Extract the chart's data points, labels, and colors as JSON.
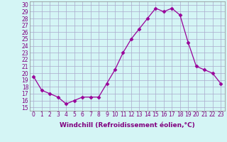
{
  "x": [
    0,
    1,
    2,
    3,
    4,
    5,
    6,
    7,
    8,
    9,
    10,
    11,
    12,
    13,
    14,
    15,
    16,
    17,
    18,
    19,
    20,
    21,
    22,
    23
  ],
  "y": [
    19.5,
    17.5,
    17.0,
    16.5,
    15.5,
    16.0,
    16.5,
    16.5,
    16.5,
    18.5,
    20.5,
    23.0,
    25.0,
    26.5,
    28.0,
    29.5,
    29.0,
    29.5,
    28.5,
    24.5,
    21.0,
    20.5,
    20.0,
    18.5
  ],
  "line_color": "#990099",
  "marker": "D",
  "marker_size": 2.5,
  "bg_color": "#d4f5f5",
  "grid_color": "#aaaacc",
  "xlabel": "Windchill (Refroidissement éolien,°C)",
  "ylim": [
    14.5,
    30.5
  ],
  "xlim": [
    -0.5,
    23.5
  ],
  "yticks": [
    15,
    16,
    17,
    18,
    19,
    20,
    21,
    22,
    23,
    24,
    25,
    26,
    27,
    28,
    29,
    30
  ],
  "xticks": [
    0,
    1,
    2,
    3,
    4,
    5,
    6,
    7,
    8,
    9,
    10,
    11,
    12,
    13,
    14,
    15,
    16,
    17,
    18,
    19,
    20,
    21,
    22,
    23
  ],
  "tick_fontsize": 5.5,
  "xlabel_fontsize": 6.5,
  "tick_color": "#800080",
  "label_color": "#800080"
}
